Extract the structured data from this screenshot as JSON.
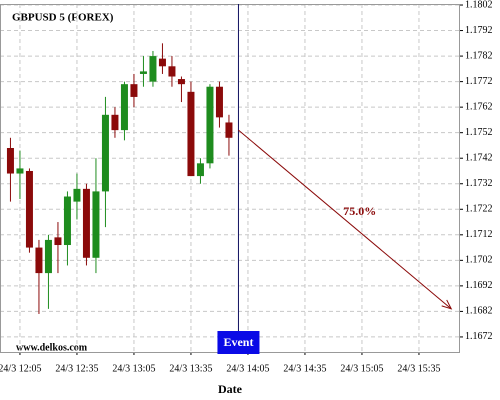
{
  "chart_data": {
    "type": "candlestick",
    "title": "GBPUSD 5 (FOREX)",
    "x_label": "Date",
    "watermark": "www.delkos.com",
    "x": [
      720,
      725,
      730,
      735,
      740,
      745,
      750,
      755,
      760,
      765,
      770,
      775,
      780,
      785,
      790,
      795,
      800,
      805,
      810,
      815,
      820,
      825,
      830,
      835
    ],
    "open": [
      1.1746,
      1.1736,
      1.1737,
      1.1707,
      1.1697,
      1.1711,
      1.1708,
      1.1725,
      1.173,
      1.1703,
      1.1729,
      1.1759,
      1.1753,
      1.1771,
      1.1775,
      1.1772,
      1.1781,
      1.1778,
      1.1773,
      1.1768,
      1.1735,
      1.174,
      1.177,
      1.1756
    ],
    "high": [
      1.175,
      1.1745,
      1.1738,
      1.171,
      1.1712,
      1.1717,
      1.1729,
      1.1736,
      1.1732,
      1.1742,
      1.1766,
      1.1762,
      1.1772,
      1.1775,
      1.1782,
      1.1784,
      1.1787,
      1.1782,
      1.1774,
      1.1772,
      1.1742,
      1.1771,
      1.1772,
      1.1759
    ],
    "low": [
      1.1725,
      1.1726,
      1.1705,
      1.1681,
      1.1683,
      1.1697,
      1.17,
      1.1718,
      1.17,
      1.1697,
      1.1715,
      1.175,
      1.1749,
      1.1762,
      1.177,
      1.177,
      1.1775,
      1.177,
      1.1764,
      1.1735,
      1.1732,
      1.1738,
      1.1754,
      1.1743
    ],
    "close": [
      1.1736,
      1.1738,
      1.1707,
      1.1697,
      1.171,
      1.1708,
      1.1727,
      1.173,
      1.1703,
      1.1729,
      1.1759,
      1.1753,
      1.1771,
      1.1766,
      1.1776,
      1.1782,
      1.1778,
      1.1774,
      1.1771,
      1.1735,
      1.174,
      1.177,
      1.1758,
      1.175
    ],
    "up_color": "#1e8c1e",
    "down_color": "#8b0a0a",
    "xlim": [
      714.5,
      956.6
    ],
    "xticks": [
      {
        "value": 725,
        "label": "24/3 12:05"
      },
      {
        "value": 755,
        "label": "24/3 12:35"
      },
      {
        "value": 785,
        "label": "24/3 13:05"
      },
      {
        "value": 815,
        "label": "24/3 13:35"
      },
      {
        "value": 845,
        "label": "24/3 14:05"
      },
      {
        "value": 875,
        "label": "24/3 14:35"
      },
      {
        "value": 905,
        "label": "24/3 15:05"
      },
      {
        "value": 935,
        "label": "24/3 15:35"
      }
    ],
    "ylim": [
      1.16661,
      1.18024
    ],
    "yticks": [
      1.1672,
      1.1682,
      1.1692,
      1.1702,
      1.1712,
      1.1722,
      1.1732,
      1.1742,
      1.1752,
      1.1762,
      1.1772,
      1.1782,
      1.1792,
      1.1802
    ],
    "grid": true,
    "event": {
      "x": 840,
      "label": "Event"
    },
    "forecast": {
      "x": [
        840,
        952
      ],
      "y": [
        1.1753,
        1.1683
      ],
      "label": "75.0%",
      "color": "#8b0a0a"
    }
  }
}
